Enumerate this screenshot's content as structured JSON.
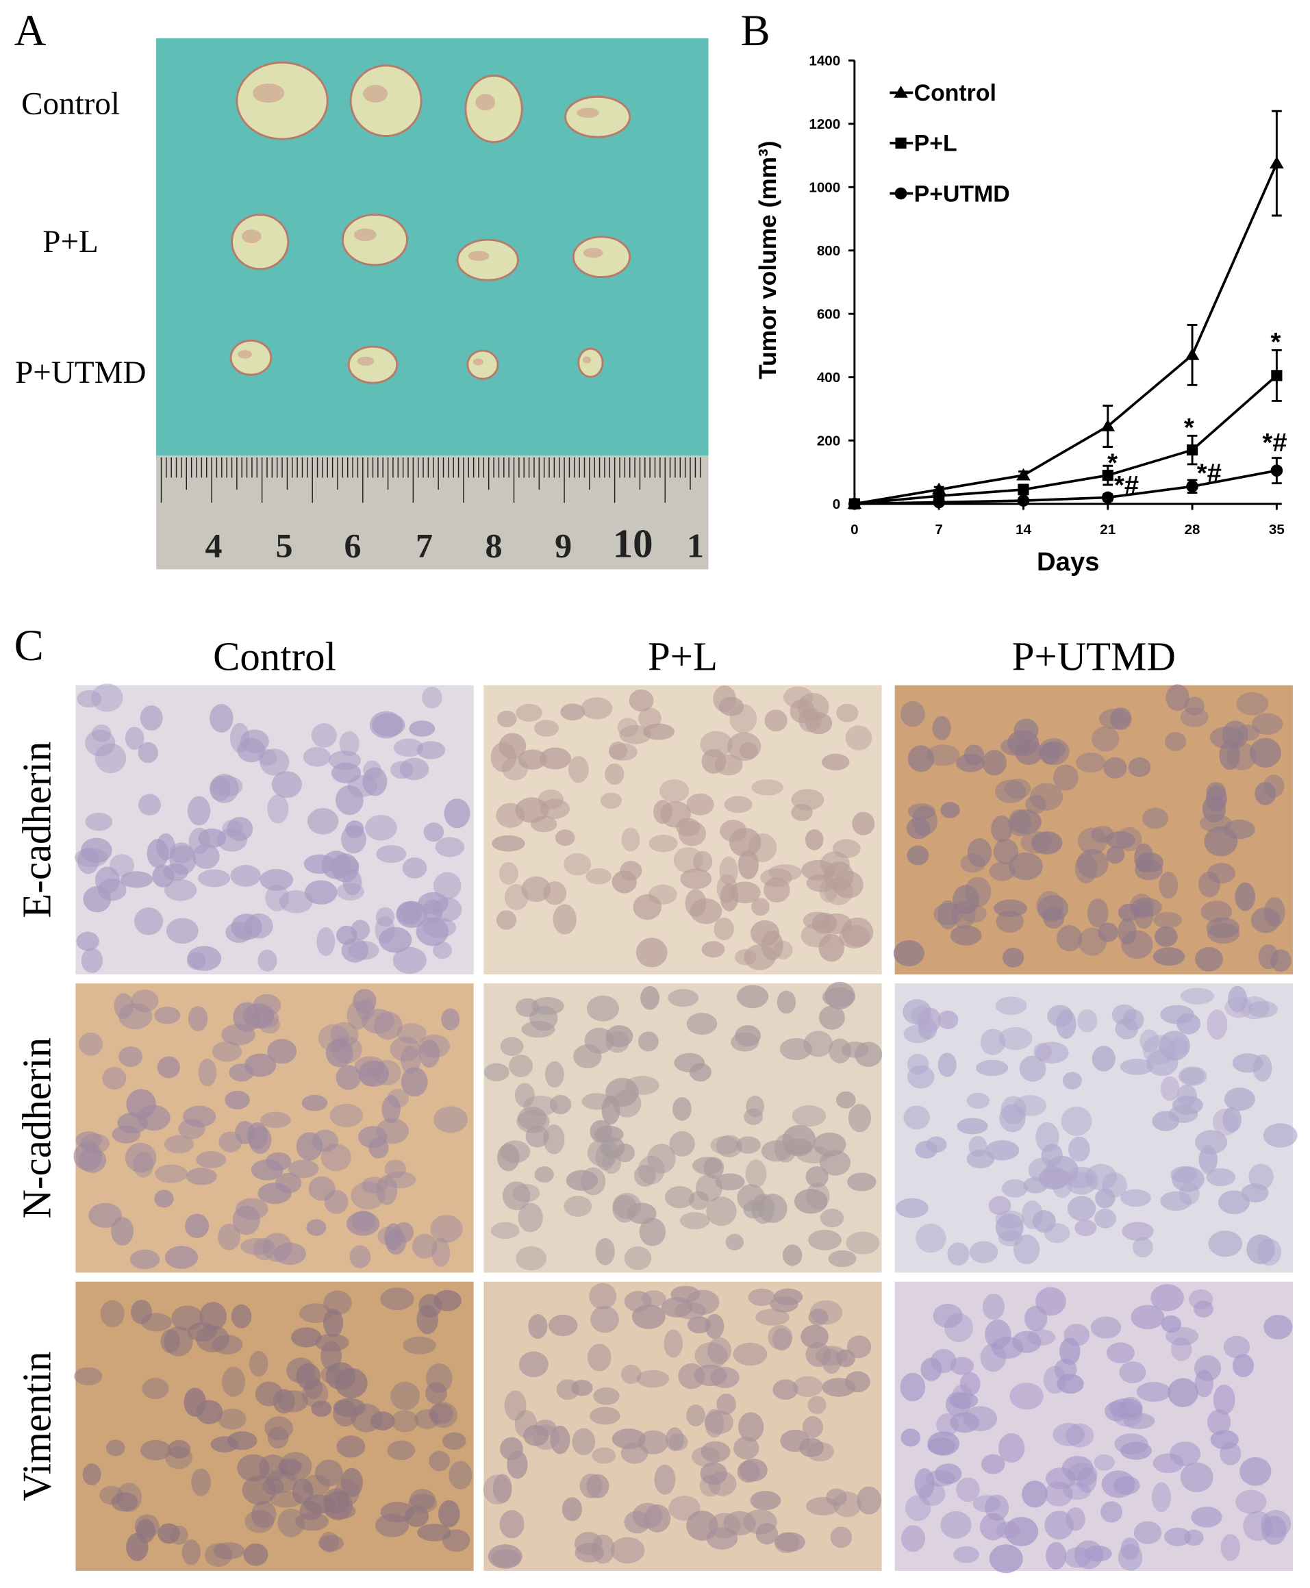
{
  "panel_a": {
    "label": "A",
    "rows": [
      "Control",
      "P+L",
      "P+UTMD"
    ],
    "ruler_labels": [
      "4",
      "5",
      "6",
      "7",
      "8",
      "9",
      "10",
      "1"
    ]
  },
  "chart_data": {
    "type": "line",
    "label": "B",
    "x_label": "Days",
    "y_label": "Tumor volume (mm³)",
    "x": [
      0,
      7,
      14,
      21,
      28,
      35
    ],
    "xlim": [
      0,
      35
    ],
    "xticks": [
      0,
      7,
      14,
      21,
      28,
      35
    ],
    "ylim": [
      0,
      1400
    ],
    "yticks": [
      0,
      200,
      400,
      600,
      800,
      1000,
      1200,
      1400
    ],
    "grid": false,
    "legend": "upper left",
    "series": [
      {
        "name": "Control",
        "color": "#000000",
        "marker": "triangle",
        "values": [
          0,
          45,
          90,
          245,
          470,
          1075
        ],
        "errors": [
          null,
          8,
          12,
          65,
          95,
          165
        ]
      },
      {
        "name": "P+L",
        "color": "#000000",
        "marker": "square",
        "values": [
          0,
          25,
          45,
          90,
          170,
          405
        ],
        "errors": [
          null,
          null,
          15,
          30,
          45,
          80
        ]
      },
      {
        "name": "P+UTMD",
        "color": "#000000",
        "marker": "circle",
        "values": [
          0,
          5,
          10,
          20,
          55,
          105
        ],
        "errors": [
          null,
          null,
          null,
          10,
          20,
          40
        ]
      }
    ],
    "annotations": [
      "*",
      "*#",
      "*",
      "*#",
      "*",
      "*#"
    ]
  },
  "panel_c": {
    "label": "C",
    "columns": [
      "Control",
      "P+L",
      "P+UTMD"
    ],
    "rows": [
      "E-cadherin",
      "N-cadherin",
      "Vimentin"
    ]
  }
}
